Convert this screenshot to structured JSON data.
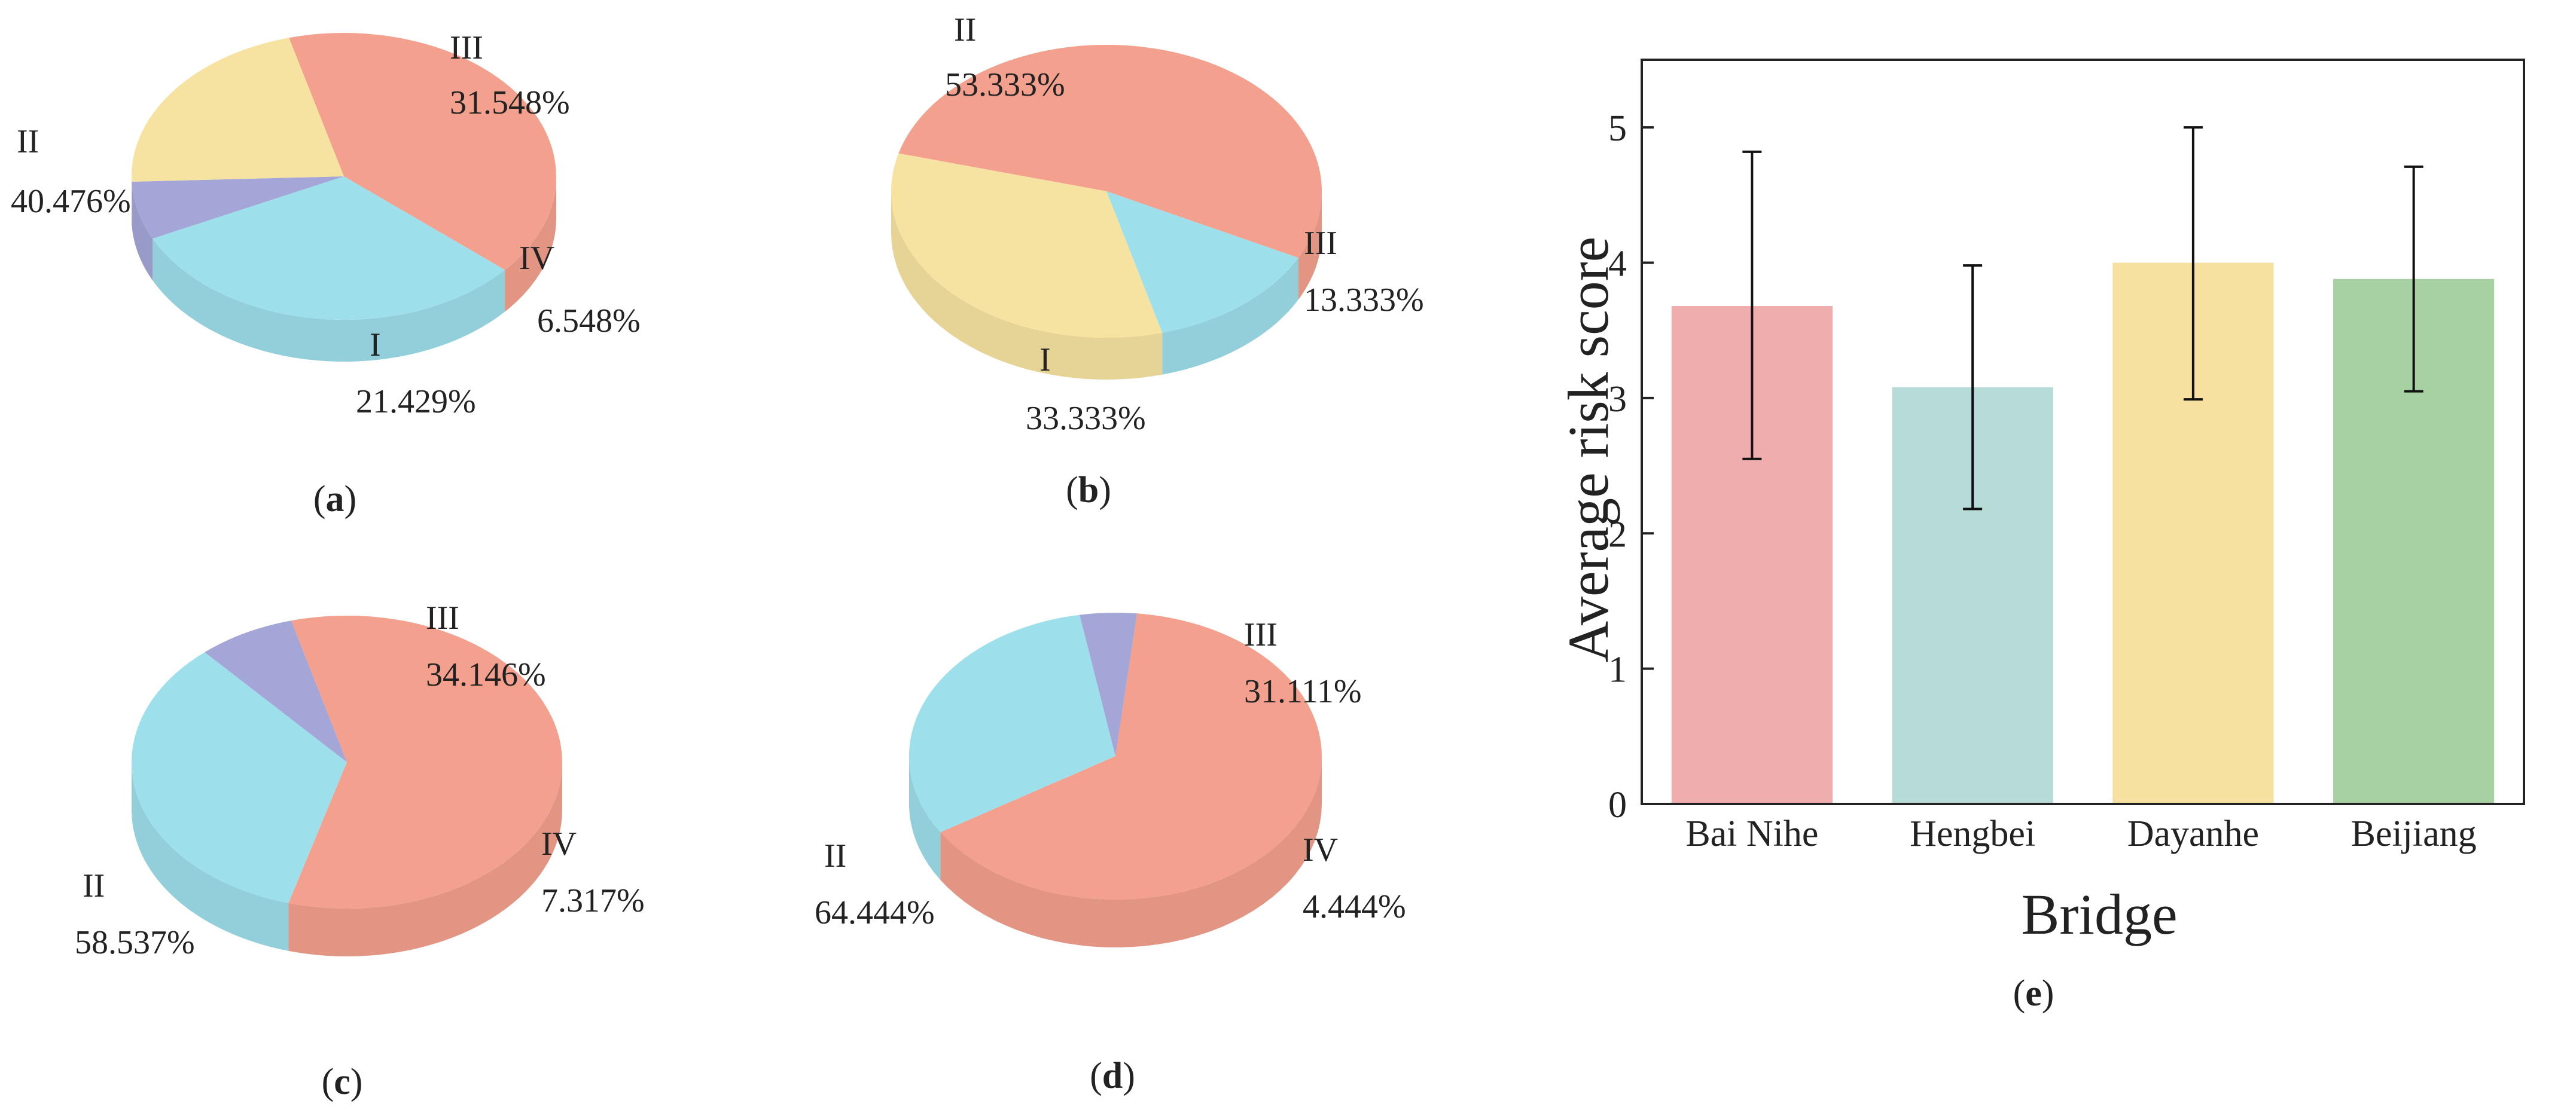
{
  "chart_data": [
    {
      "type": "pie",
      "panel": "a",
      "slices": [
        {
          "label": "I",
          "value": 21.429,
          "text": "21.429%",
          "color": "#f7e3a1"
        },
        {
          "label": "II",
          "value": 40.476,
          "text": "40.476%",
          "color": "#f4a08e"
        },
        {
          "label": "III",
          "value": 31.548,
          "text": "31.548%",
          "color": "#9ddfeb"
        },
        {
          "label": "IV",
          "value": 6.548,
          "text": "6.548%",
          "color": "#a3a6d6"
        }
      ]
    },
    {
      "type": "pie",
      "panel": "b",
      "slices": [
        {
          "label": "I",
          "value": 33.333,
          "text": "33.333%",
          "color": "#f7e3a1"
        },
        {
          "label": "II",
          "value": 53.333,
          "text": "53.333%",
          "color": "#f4a08e"
        },
        {
          "label": "III",
          "value": 13.333,
          "text": "13.333%",
          "color": "#9ddfeb"
        }
      ]
    },
    {
      "type": "pie",
      "panel": "c",
      "slices": [
        {
          "label": "II",
          "value": 58.537,
          "text": "58.537%",
          "color": "#f4a08e"
        },
        {
          "label": "III",
          "value": 34.146,
          "text": "34.146%",
          "color": "#9ddfeb"
        },
        {
          "label": "IV",
          "value": 7.317,
          "text": "7.317%",
          "color": "#a3a6d6"
        }
      ]
    },
    {
      "type": "pie",
      "panel": "d",
      "slices": [
        {
          "label": "II",
          "value": 64.444,
          "text": "64.444%",
          "color": "#f4a08e"
        },
        {
          "label": "III",
          "value": 31.111,
          "text": "31.111%",
          "color": "#9ddfeb"
        },
        {
          "label": "IV",
          "value": 4.444,
          "text": "4.444%",
          "color": "#a3a6d6"
        }
      ]
    },
    {
      "type": "bar",
      "panel": "e",
      "categories": [
        "Bai Nihe",
        "Hengbei",
        "Dayanhe",
        "Beijiang"
      ],
      "values": [
        3.68,
        3.08,
        4.0,
        3.88
      ],
      "error_low": [
        2.55,
        2.18,
        2.99,
        3.05
      ],
      "error_high": [
        4.82,
        3.98,
        5.0,
        4.71
      ],
      "colors": [
        "#f0adad",
        "#b7dcd8",
        "#f6e1a0",
        "#a8d1a3"
      ],
      "xlabel": "Bridge",
      "ylabel": "Average risk score",
      "ylim": [
        0,
        5.5
      ],
      "yticks": [
        0,
        1,
        2,
        3,
        4,
        5
      ]
    }
  ],
  "panel_labels": {
    "a": "(a)",
    "b": "(b)",
    "c": "(c)",
    "d": "(d)",
    "e": "(e)"
  }
}
